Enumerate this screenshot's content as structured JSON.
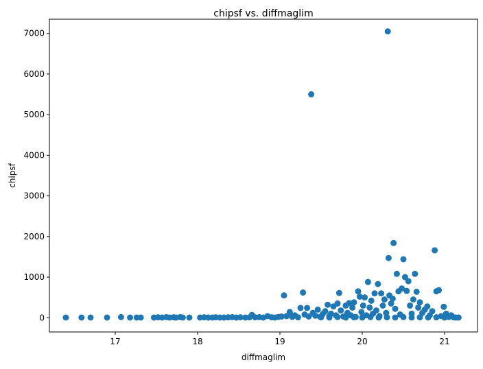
{
  "chart_data": {
    "type": "scatter",
    "title": "chipsf vs. diffmaglim",
    "xlabel": "diffmaglim",
    "ylabel": "chipsf",
    "xlim": [
      16.2,
      21.4
    ],
    "ylim": [
      -350,
      7350
    ],
    "xticks": [
      "17",
      "18",
      "19",
      "20",
      "21"
    ],
    "yticks": [
      "0",
      "1000",
      "2000",
      "3000",
      "4000",
      "5000",
      "6000",
      "7000"
    ],
    "marker_color": "#1f77b4",
    "grid": false,
    "legend": "none",
    "points": [
      {
        "x": 16.4,
        "y": 5
      },
      {
        "x": 16.59,
        "y": 5
      },
      {
        "x": 16.7,
        "y": 5
      },
      {
        "x": 16.9,
        "y": 5
      },
      {
        "x": 17.07,
        "y": 15
      },
      {
        "x": 17.18,
        "y": 5
      },
      {
        "x": 17.26,
        "y": 5
      },
      {
        "x": 17.31,
        "y": 5
      },
      {
        "x": 17.47,
        "y": 5
      },
      {
        "x": 17.52,
        "y": 10
      },
      {
        "x": 17.57,
        "y": 5
      },
      {
        "x": 17.62,
        "y": 15
      },
      {
        "x": 17.66,
        "y": 5
      },
      {
        "x": 17.71,
        "y": 10
      },
      {
        "x": 17.74,
        "y": 5
      },
      {
        "x": 17.79,
        "y": 15
      },
      {
        "x": 17.82,
        "y": 5
      },
      {
        "x": 17.9,
        "y": 5
      },
      {
        "x": 18.03,
        "y": 5
      },
      {
        "x": 18.08,
        "y": 10
      },
      {
        "x": 18.13,
        "y": 5
      },
      {
        "x": 18.18,
        "y": 5
      },
      {
        "x": 18.22,
        "y": 10
      },
      {
        "x": 18.27,
        "y": 5
      },
      {
        "x": 18.32,
        "y": 5
      },
      {
        "x": 18.37,
        "y": 10
      },
      {
        "x": 18.42,
        "y": 15
      },
      {
        "x": 18.47,
        "y": 5
      },
      {
        "x": 18.52,
        "y": 10
      },
      {
        "x": 18.58,
        "y": 5
      },
      {
        "x": 18.63,
        "y": 10
      },
      {
        "x": 18.66,
        "y": 70
      },
      {
        "x": 18.7,
        "y": 10
      },
      {
        "x": 18.75,
        "y": 15
      },
      {
        "x": 18.8,
        "y": 5
      },
      {
        "x": 18.85,
        "y": 40
      },
      {
        "x": 18.9,
        "y": 10
      },
      {
        "x": 18.94,
        "y": 5
      },
      {
        "x": 18.98,
        "y": 20
      },
      {
        "x": 19.02,
        "y": 30
      },
      {
        "x": 19.05,
        "y": 550
      },
      {
        "x": 19.08,
        "y": 40
      },
      {
        "x": 19.12,
        "y": 140
      },
      {
        "x": 19.15,
        "y": 20
      },
      {
        "x": 19.18,
        "y": 60
      },
      {
        "x": 19.22,
        "y": 10
      },
      {
        "x": 19.25,
        "y": 240
      },
      {
        "x": 19.28,
        "y": 620
      },
      {
        "x": 19.3,
        "y": 80
      },
      {
        "x": 19.33,
        "y": 240
      },
      {
        "x": 19.35,
        "y": 30
      },
      {
        "x": 19.38,
        "y": 5500
      },
      {
        "x": 19.4,
        "y": 120
      },
      {
        "x": 19.43,
        "y": 50
      },
      {
        "x": 19.46,
        "y": 200
      },
      {
        "x": 19.49,
        "y": 20
      },
      {
        "x": 19.52,
        "y": 90
      },
      {
        "x": 19.55,
        "y": 160
      },
      {
        "x": 19.58,
        "y": 320
      },
      {
        "x": 19.6,
        "y": 40
      },
      {
        "x": 19.62,
        "y": 100
      },
      {
        "x": 19.65,
        "y": 280
      },
      {
        "x": 19.68,
        "y": 60
      },
      {
        "x": 19.7,
        "y": 350
      },
      {
        "x": 19.72,
        "y": 610
      },
      {
        "x": 19.74,
        "y": 180
      },
      {
        "x": 19.77,
        "y": 30
      },
      {
        "x": 19.8,
        "y": 300
      },
      {
        "x": 19.82,
        "y": 120
      },
      {
        "x": 19.84,
        "y": 360
      },
      {
        "x": 19.86,
        "y": 60
      },
      {
        "x": 19.88,
        "y": 250
      },
      {
        "x": 19.9,
        "y": 380
      },
      {
        "x": 19.92,
        "y": 20
      },
      {
        "x": 19.95,
        "y": 650
      },
      {
        "x": 19.97,
        "y": 520
      },
      {
        "x": 19.99,
        "y": 140
      },
      {
        "x": 20.01,
        "y": 300
      },
      {
        "x": 20.03,
        "y": 500
      },
      {
        "x": 20.05,
        "y": 60
      },
      {
        "x": 20.07,
        "y": 880
      },
      {
        "x": 20.09,
        "y": 250
      },
      {
        "x": 20.11,
        "y": 420
      },
      {
        "x": 20.13,
        "y": 100
      },
      {
        "x": 20.15,
        "y": 600
      },
      {
        "x": 20.17,
        "y": 180
      },
      {
        "x": 20.19,
        "y": 830
      },
      {
        "x": 20.21,
        "y": 40
      },
      {
        "x": 20.23,
        "y": 600
      },
      {
        "x": 20.25,
        "y": 300
      },
      {
        "x": 20.27,
        "y": 450
      },
      {
        "x": 20.29,
        "y": 120
      },
      {
        "x": 20.31,
        "y": 7050
      },
      {
        "x": 20.32,
        "y": 1470
      },
      {
        "x": 20.33,
        "y": 550
      },
      {
        "x": 20.35,
        "y": 350
      },
      {
        "x": 20.37,
        "y": 470
      },
      {
        "x": 20.38,
        "y": 1840
      },
      {
        "x": 20.4,
        "y": 220
      },
      {
        "x": 20.42,
        "y": 1080
      },
      {
        "x": 20.44,
        "y": 650
      },
      {
        "x": 20.46,
        "y": 80
      },
      {
        "x": 20.48,
        "y": 720
      },
      {
        "x": 20.5,
        "y": 1440
      },
      {
        "x": 20.52,
        "y": 1000
      },
      {
        "x": 20.54,
        "y": 660
      },
      {
        "x": 20.56,
        "y": 900
      },
      {
        "x": 20.58,
        "y": 300
      },
      {
        "x": 20.6,
        "y": 100
      },
      {
        "x": 20.62,
        "y": 450
      },
      {
        "x": 20.64,
        "y": 1080
      },
      {
        "x": 20.66,
        "y": 640
      },
      {
        "x": 20.68,
        "y": 250
      },
      {
        "x": 20.7,
        "y": 380
      },
      {
        "x": 20.73,
        "y": 120
      },
      {
        "x": 20.76,
        "y": 200
      },
      {
        "x": 20.79,
        "y": 280
      },
      {
        "x": 20.82,
        "y": 60
      },
      {
        "x": 20.85,
        "y": 160
      },
      {
        "x": 20.88,
        "y": 1660
      },
      {
        "x": 20.9,
        "y": 650
      },
      {
        "x": 20.93,
        "y": 680
      },
      {
        "x": 20.96,
        "y": 40
      },
      {
        "x": 20.99,
        "y": 270
      },
      {
        "x": 21.02,
        "y": 100
      },
      {
        "x": 21.05,
        "y": 20
      },
      {
        "x": 21.08,
        "y": 60
      },
      {
        "x": 21.11,
        "y": 10
      },
      {
        "x": 21.14,
        "y": 5
      },
      {
        "x": 21.17,
        "y": 5
      },
      {
        "x": 19.5,
        "y": 10
      },
      {
        "x": 19.6,
        "y": 5
      },
      {
        "x": 19.7,
        "y": 15
      },
      {
        "x": 19.8,
        "y": 5
      },
      {
        "x": 19.9,
        "y": 10
      },
      {
        "x": 20.0,
        "y": 5
      },
      {
        "x": 20.1,
        "y": 15
      },
      {
        "x": 20.2,
        "y": 5
      },
      {
        "x": 20.3,
        "y": 10
      },
      {
        "x": 20.4,
        "y": 5
      },
      {
        "x": 20.5,
        "y": 15
      },
      {
        "x": 20.6,
        "y": 5
      },
      {
        "x": 20.7,
        "y": 10
      },
      {
        "x": 20.8,
        "y": 5
      },
      {
        "x": 20.9,
        "y": 10
      },
      {
        "x": 21.0,
        "y": 5
      }
    ]
  }
}
